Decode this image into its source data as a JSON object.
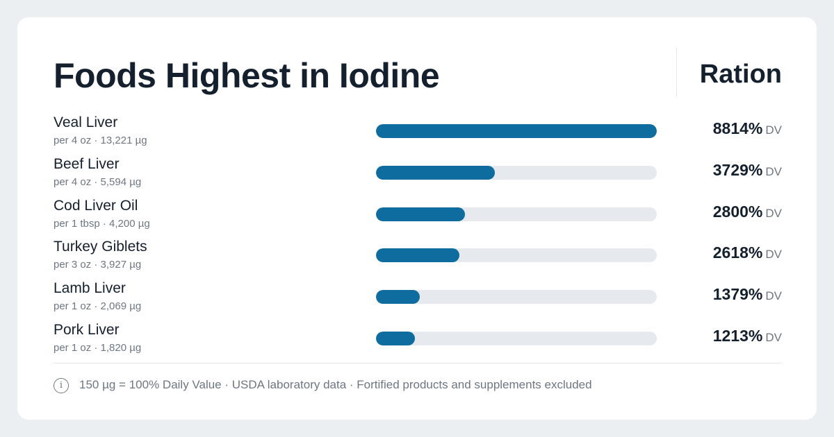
{
  "header": {
    "title": "Foods Highest in Iodine",
    "brand": "Ration"
  },
  "chart_data": {
    "type": "bar",
    "orientation": "horizontal",
    "categories": [
      "Veal Liver",
      "Beef Liver",
      "Cod Liver Oil",
      "Turkey Giblets",
      "Lamb Liver",
      "Pork Liver"
    ],
    "values": [
      8814,
      3729,
      2800,
      2618,
      1379,
      1213
    ],
    "unit": "% DV",
    "xlim": [
      0,
      8814
    ]
  },
  "rows": [
    {
      "name": "Veal Liver",
      "sub": "per 4 oz · 13,221 µg",
      "value": 8814,
      "pct_label": "8814%",
      "dv_label": "DV"
    },
    {
      "name": "Beef Liver",
      "sub": "per 4 oz · 5,594 µg",
      "value": 3729,
      "pct_label": "3729%",
      "dv_label": "DV"
    },
    {
      "name": "Cod Liver Oil",
      "sub": "per 1 tbsp · 4,200 µg",
      "value": 2800,
      "pct_label": "2800%",
      "dv_label": "DV"
    },
    {
      "name": "Turkey Giblets",
      "sub": "per 3 oz · 3,927 µg",
      "value": 2618,
      "pct_label": "2618%",
      "dv_label": "DV"
    },
    {
      "name": "Lamb Liver",
      "sub": "per 1 oz · 2,069 µg",
      "value": 1379,
      "pct_label": "1379%",
      "dv_label": "DV"
    },
    {
      "name": "Pork Liver",
      "sub": "per 1 oz · 1,820 µg",
      "value": 1213,
      "pct_label": "1213%",
      "dv_label": "DV"
    }
  ],
  "footer": {
    "icon": "info-icon",
    "icon_glyph": "i",
    "note": "150 µg = 100% Daily Value · USDA laboratory data · Fortified products and supplements excluded"
  },
  "colors": {
    "bar_fill": "#0f6c9e",
    "bar_track": "#e6eaee",
    "text_primary": "#14202e",
    "text_secondary": "#6d7782",
    "background": "#eceff2",
    "card": "#ffffff"
  }
}
